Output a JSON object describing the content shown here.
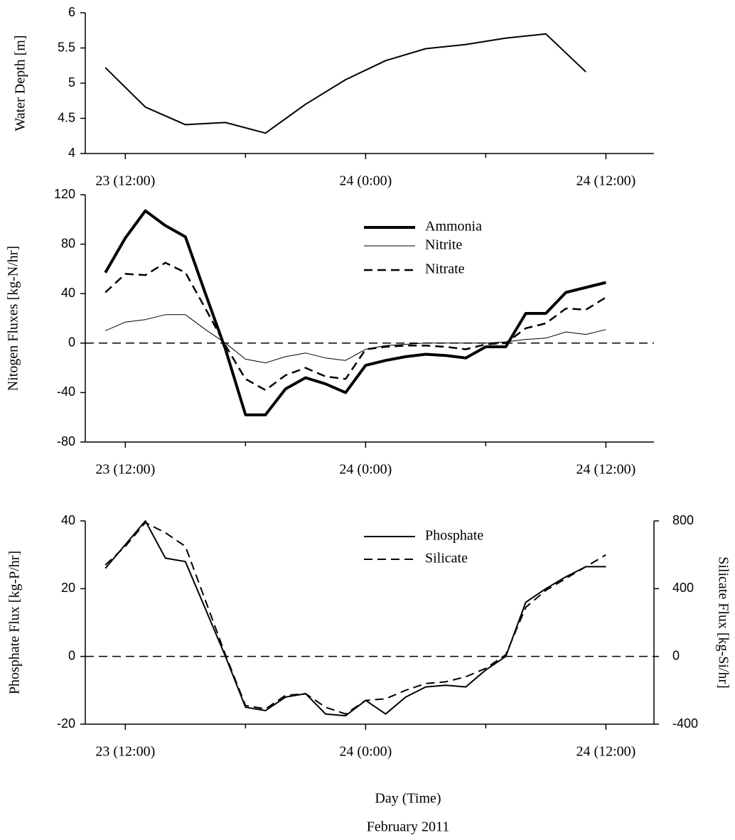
{
  "chart_data": [
    {
      "type": "line",
      "ylabel": "Water Depth [m]",
      "x": [
        11,
        13,
        15,
        17,
        19,
        21,
        23,
        25,
        27,
        29,
        31,
        33,
        35
      ],
      "series": [
        {
          "color": "#000000",
          "linewidth": 2,
          "style": "solid",
          "values": [
            5.22,
            4.66,
            4.41,
            4.44,
            4.29,
            4.7,
            5.05,
            5.32,
            5.49,
            5.55,
            5.64,
            5.7,
            5.16
          ]
        }
      ],
      "xlim": [
        10,
        38.4
      ],
      "xticks": [
        {
          "value": 12,
          "label": "23 (12:00)"
        },
        {
          "value": 24,
          "label": "24 (0:00)"
        },
        {
          "value": 36,
          "label": "24 (12:00)"
        }
      ],
      "xminor_ticks": [
        18,
        30
      ],
      "ylim": [
        4,
        6
      ],
      "yticks": [
        4,
        4.5,
        5,
        5.5,
        6
      ]
    },
    {
      "type": "line",
      "ylabel": "Nitogen Fluxes [kg-N/hr]",
      "x": [
        11,
        12,
        13,
        14,
        15,
        16,
        17,
        18,
        19,
        20,
        21,
        22,
        23,
        24,
        25,
        26,
        27,
        28,
        29,
        30,
        31,
        32,
        33,
        34,
        35,
        36
      ],
      "series": [
        {
          "name": "Ammonia",
          "color": "#000000",
          "linewidth": 4,
          "style": "solid",
          "values": [
            57,
            85,
            107,
            95,
            86,
            40,
            -5,
            -58,
            -58,
            -37,
            -28,
            -33,
            -40,
            -18,
            -14,
            -11,
            -9,
            -10,
            -12,
            -3,
            -3,
            24,
            24,
            41,
            45,
            49
          ]
        },
        {
          "name": "Nitrite",
          "color": "#000000",
          "linewidth": 1,
          "style": "solid",
          "values": [
            10,
            17,
            19,
            23,
            23,
            11,
            0,
            -13,
            -16,
            -11,
            -8,
            -12,
            -14,
            -5,
            -2,
            -1,
            0,
            0,
            0,
            0,
            1,
            3,
            4,
            9,
            7,
            11
          ]
        },
        {
          "name": "Nitrate",
          "color": "#000000",
          "linewidth": 2.5,
          "style": "dashed",
          "values": [
            41,
            56,
            55,
            65,
            57,
            28,
            -2,
            -29,
            -38,
            -26,
            -20,
            -27,
            -29,
            -5,
            -3,
            -2,
            -2,
            -3,
            -5,
            -1,
            0,
            12,
            16,
            28,
            27,
            37
          ]
        }
      ],
      "hline": 0,
      "legend": "upper center",
      "xlim": [
        10,
        38.4
      ],
      "xticks": [
        {
          "value": 12,
          "label": "23 (12:00)"
        },
        {
          "value": 24,
          "label": "24 (0:00)"
        },
        {
          "value": 36,
          "label": "24 (12:00)"
        }
      ],
      "xminor_ticks": [
        18,
        30
      ],
      "ylim": [
        -80,
        120
      ],
      "yticks": [
        -80,
        -40,
        0,
        40,
        80,
        120
      ]
    },
    {
      "type": "line",
      "ylabel": "Phosphate Flux [kg-P/hr]",
      "y2label": "Silicate Flux [kg-Si/hr]",
      "xlabel": "Day (Time)",
      "annotations": [
        "February 2011"
      ],
      "x": [
        11,
        12,
        13,
        14,
        15,
        16,
        17,
        18,
        19,
        20,
        21,
        22,
        23,
        24,
        25,
        26,
        27,
        28,
        29,
        30,
        31,
        32,
        33,
        34,
        35,
        36
      ],
      "series": [
        {
          "name": "Phosphate",
          "color": "#000000",
          "linewidth": 2,
          "style": "solid",
          "values": [
            26,
            33,
            40,
            29,
            28,
            14,
            0,
            -15,
            -16,
            -12,
            -11,
            -17,
            -17.5,
            -13,
            -17,
            -12,
            -9,
            -8.5,
            -9,
            -4,
            0,
            16,
            20,
            23.5,
            26.5,
            26.5
          ]
        },
        {
          "name": "Silicate",
          "color": "#000000",
          "linewidth": 2,
          "style": "dashed",
          "axis": "y2",
          "values": [
            540,
            650,
            790,
            730,
            650,
            330,
            10,
            -290,
            -310,
            -230,
            -220,
            -300,
            -340,
            -260,
            -250,
            -200,
            -160,
            -150,
            -120,
            -70,
            10,
            290,
            390,
            460,
            530,
            600
          ]
        }
      ],
      "hline": 0,
      "legend": "upper center",
      "xlim": [
        10,
        38.4
      ],
      "xticks": [
        {
          "value": 12,
          "label": "23 (12:00)"
        },
        {
          "value": 24,
          "label": "24 (0:00)"
        },
        {
          "value": 36,
          "label": "24 (12:00)"
        }
      ],
      "xminor_ticks": [
        18,
        30
      ],
      "ylim": [
        -20,
        40
      ],
      "yticks": [
        -20,
        0,
        20,
        40
      ],
      "y2lim": [
        -400,
        800
      ],
      "y2ticks": [
        -400,
        0,
        400,
        800
      ]
    }
  ]
}
